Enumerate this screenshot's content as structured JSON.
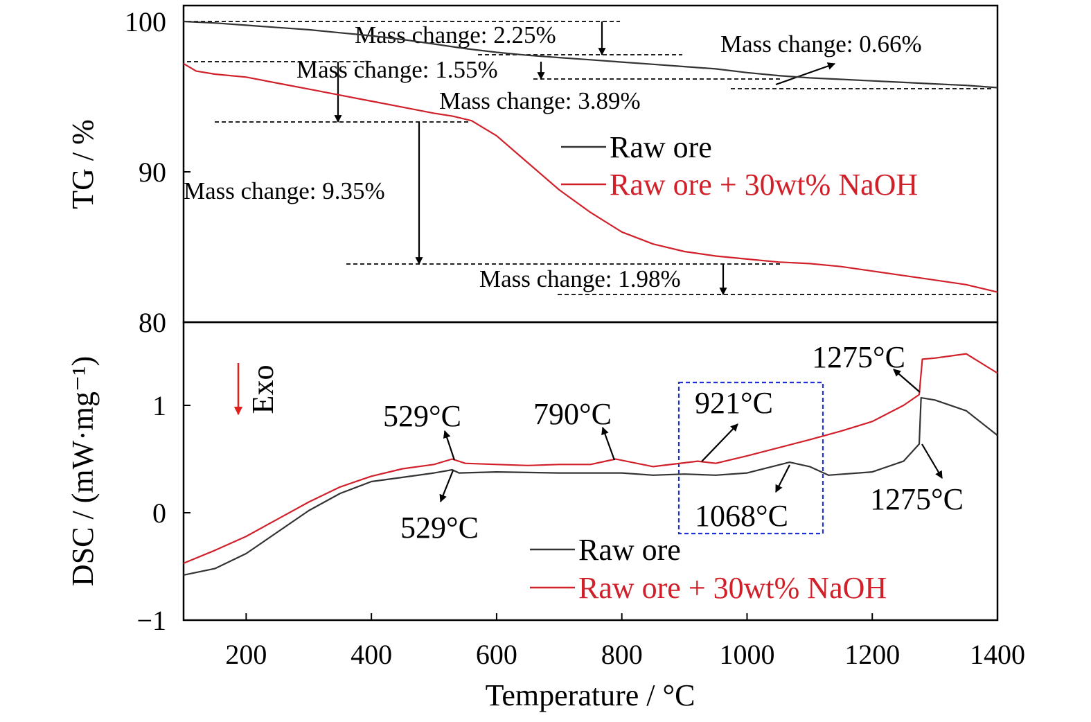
{
  "chart_data": [
    {
      "type": "line",
      "panel": "TG",
      "xlabel": "",
      "ylabel": "TG / %",
      "xlim": [
        100,
        1400
      ],
      "ylim": [
        80,
        101
      ],
      "yticks": [
        80,
        90,
        100
      ],
      "grid": false,
      "legend": "center-right",
      "series": [
        {
          "name": "Raw ore",
          "color": "#333333",
          "x": [
            100,
            150,
            200,
            250,
            300,
            350,
            400,
            450,
            500,
            550,
            600,
            650,
            700,
            750,
            800,
            850,
            900,
            950,
            1000,
            1050,
            1100,
            1150,
            1200,
            1250,
            1300,
            1350,
            1400
          ],
          "y": [
            100.0,
            99.9,
            99.75,
            99.6,
            99.45,
            99.25,
            99.05,
            98.8,
            98.5,
            98.2,
            97.95,
            97.75,
            97.6,
            97.45,
            97.3,
            97.15,
            97.0,
            96.85,
            96.6,
            96.4,
            96.25,
            96.15,
            96.05,
            95.95,
            95.85,
            95.75,
            95.6
          ]
        },
        {
          "name": "Raw ore + 30wt% NaOH",
          "color": "#d1202a",
          "x": [
            100,
            120,
            150,
            200,
            250,
            300,
            350,
            400,
            450,
            500,
            530,
            560,
            600,
            650,
            700,
            750,
            800,
            850,
            900,
            950,
            1000,
            1050,
            1100,
            1150,
            1200,
            1250,
            1300,
            1350,
            1400
          ],
          "y": [
            97.2,
            96.7,
            96.5,
            96.3,
            95.9,
            95.5,
            95.1,
            94.7,
            94.3,
            93.9,
            93.7,
            93.4,
            92.4,
            90.6,
            88.8,
            87.3,
            86.0,
            85.2,
            84.7,
            84.4,
            84.2,
            84.0,
            83.9,
            83.7,
            83.4,
            83.1,
            82.8,
            82.5,
            82.0
          ]
        }
      ],
      "annotations": [
        "Mass change: 2.25%",
        "Mass change: 1.55%",
        "Mass change: 0.66%",
        "Mass change: 3.89%",
        "Mass change: 9.35%",
        "Mass change: 1.98%"
      ]
    },
    {
      "type": "line",
      "panel": "DSC",
      "xlabel": "Temperature / °C",
      "ylabel": "DSC / (mW·mg⁻¹)",
      "xlim": [
        100,
        1400
      ],
      "ylim": [
        -1,
        1.85
      ],
      "xticks": [
        200,
        400,
        600,
        800,
        1000,
        1200,
        1400
      ],
      "yticks": [
        -1,
        0,
        1
      ],
      "grid": false,
      "legend": "bottom-right",
      "series": [
        {
          "name": "Raw ore",
          "color": "#333333",
          "x": [
            100,
            150,
            200,
            250,
            300,
            350,
            400,
            450,
            500,
            529,
            540,
            600,
            700,
            800,
            850,
            900,
            950,
            1000,
            1068,
            1100,
            1130,
            1200,
            1250,
            1275,
            1278,
            1300,
            1350,
            1400
          ],
          "y": [
            -0.58,
            -0.52,
            -0.38,
            -0.18,
            0.02,
            0.18,
            0.29,
            0.33,
            0.37,
            0.4,
            0.37,
            0.38,
            0.37,
            0.37,
            0.35,
            0.36,
            0.35,
            0.37,
            0.47,
            0.43,
            0.35,
            0.38,
            0.48,
            0.64,
            1.07,
            1.05,
            0.95,
            0.72
          ]
        },
        {
          "name": "Raw ore + 30wt% NaOH",
          "color": "#d1202a",
          "x": [
            100,
            150,
            200,
            250,
            300,
            350,
            400,
            450,
            500,
            529,
            550,
            600,
            650,
            700,
            750,
            790,
            850,
            921,
            950,
            1000,
            1100,
            1150,
            1200,
            1250,
            1275,
            1280,
            1300,
            1350,
            1400
          ],
          "y": [
            -0.47,
            -0.35,
            -0.22,
            -0.06,
            0.1,
            0.24,
            0.34,
            0.41,
            0.45,
            0.5,
            0.46,
            0.45,
            0.44,
            0.45,
            0.45,
            0.5,
            0.43,
            0.48,
            0.46,
            0.53,
            0.68,
            0.76,
            0.85,
            1.0,
            1.1,
            1.43,
            1.44,
            1.48,
            1.3
          ]
        }
      ],
      "peak_labels": [
        "529°C",
        "529°C",
        "790°C",
        "921°C",
        "1068°C",
        "1275°C",
        "1275°C"
      ],
      "exo_label": "Exo"
    }
  ]
}
